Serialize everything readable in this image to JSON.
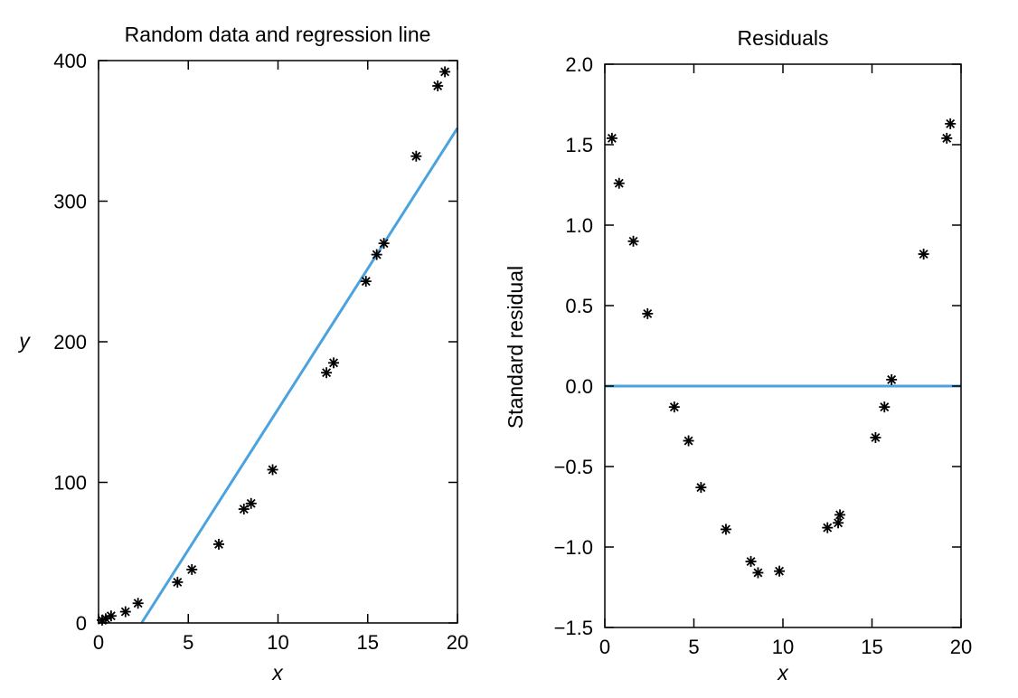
{
  "colors": {
    "line": "#4aa3df",
    "marker": "#000000",
    "axis": "#000000"
  },
  "chart_data": [
    {
      "type": "scatter",
      "title": "Random data and regression line",
      "xlabel": "x",
      "ylabel": "y",
      "xlim": [
        0,
        20
      ],
      "ylim": [
        0,
        400
      ],
      "xticks": [
        0,
        5,
        10,
        15,
        20
      ],
      "yticks": [
        0,
        100,
        200,
        300,
        400
      ],
      "grid": false,
      "series": [
        {
          "kind": "points",
          "x": [
            0.2,
            0.4,
            0.7,
            1.5,
            2.2,
            4.4,
            5.2,
            6.7,
            8.1,
            8.5,
            9.7,
            12.7,
            13.1,
            14.9,
            15.5,
            15.9,
            17.7,
            18.9,
            19.3
          ],
          "y": [
            2,
            3,
            5,
            8,
            14,
            29,
            38,
            56,
            81,
            85,
            109,
            178,
            185,
            243,
            262,
            270,
            332,
            382,
            392
          ]
        },
        {
          "kind": "line",
          "x": [
            2.4,
            20
          ],
          "y": [
            0,
            352
          ]
        }
      ]
    },
    {
      "type": "scatter",
      "title": "Residuals",
      "xlabel": "x",
      "ylabel": "Standard residual",
      "xlim": [
        0,
        20
      ],
      "ylim": [
        -1.5,
        2.0
      ],
      "xticks": [
        0,
        5,
        10,
        15,
        20
      ],
      "yticks": [
        -1.5,
        -1.0,
        -0.5,
        0.0,
        0.5,
        1.0,
        1.5,
        2.0
      ],
      "ytick_labels": [
        "−1.5",
        "−1.0",
        "−0.5",
        "0.0",
        "0.5",
        "1.0",
        "1.5",
        "2.0"
      ],
      "grid": false,
      "series": [
        {
          "kind": "points",
          "x": [
            0.4,
            0.8,
            1.6,
            2.4,
            3.9,
            4.7,
            5.4,
            6.8,
            8.2,
            8.6,
            9.8,
            12.5,
            13.1,
            13.2,
            15.2,
            15.7,
            16.1,
            17.9,
            19.2,
            19.4
          ],
          "y": [
            1.54,
            1.26,
            0.9,
            0.45,
            -0.13,
            -0.34,
            -0.63,
            -0.89,
            -1.09,
            -1.16,
            -1.15,
            -0.88,
            -0.85,
            -0.8,
            -0.32,
            -0.13,
            0.04,
            0.82,
            1.54,
            1.63
          ]
        },
        {
          "kind": "line",
          "x": [
            0,
            20
          ],
          "y": [
            0,
            0
          ]
        }
      ]
    }
  ]
}
